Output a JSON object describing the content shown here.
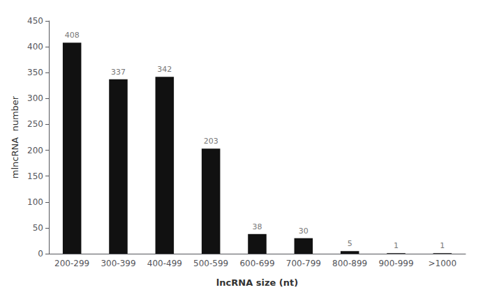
{
  "chart_data": {
    "type": "bar",
    "categories": [
      "200-299",
      "300-399",
      "400-499",
      "500-599",
      "600-699",
      "700-799",
      "800-899",
      "900-999",
      ">1000"
    ],
    "values": [
      408,
      337,
      342,
      203,
      38,
      30,
      5,
      1,
      1
    ],
    "color": "#111111",
    "xlabel": "lncRNA size (nt)",
    "ylabel": "mlncRNA  number",
    "ylim": [
      0,
      450
    ],
    "yticks": [
      0,
      50,
      100,
      150,
      200,
      250,
      300,
      350,
      400,
      450
    ],
    "grid": false,
    "data_labels": true
  }
}
